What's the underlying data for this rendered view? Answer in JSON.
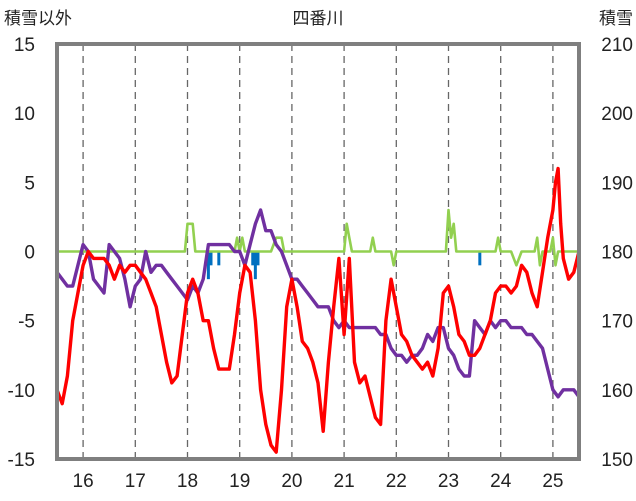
{
  "chart_data": {
    "type": "line",
    "title": "四番川",
    "ylabel_left": "積雪以外",
    "ylabel_right": "積雪",
    "ylim_left": [
      -15,
      15
    ],
    "ylim_right": [
      150,
      210
    ],
    "left_ticks": [
      15,
      10,
      5,
      0,
      -5,
      -10,
      -15
    ],
    "right_ticks": [
      210,
      200,
      190,
      180,
      170,
      160,
      150
    ],
    "xlim": [
      15.5,
      25.5
    ],
    "x_ticks": [
      16,
      17,
      18,
      19,
      20,
      21,
      22,
      23,
      24,
      25
    ],
    "grid": "dashed-vertical",
    "legend": "none",
    "series": [
      {
        "color": "#ff0000",
        "axis": "left",
        "points": [
          [
            15.5,
            -10
          ],
          [
            15.6,
            -11
          ],
          [
            15.7,
            -9
          ],
          [
            15.8,
            -5
          ],
          [
            15.9,
            -3
          ],
          [
            16.0,
            -1
          ],
          [
            16.1,
            0
          ],
          [
            16.2,
            -0.5
          ],
          [
            16.3,
            -0.5
          ],
          [
            16.4,
            -0.5
          ],
          [
            16.5,
            -1
          ],
          [
            16.6,
            -2
          ],
          [
            16.7,
            -1
          ],
          [
            16.8,
            -1.5
          ],
          [
            16.9,
            -1
          ],
          [
            17.0,
            -1
          ],
          [
            17.1,
            -1.5
          ],
          [
            17.2,
            -2
          ],
          [
            17.3,
            -3
          ],
          [
            17.4,
            -4
          ],
          [
            17.5,
            -6
          ],
          [
            17.6,
            -8
          ],
          [
            17.7,
            -9.5
          ],
          [
            17.8,
            -9
          ],
          [
            17.9,
            -6
          ],
          [
            18.0,
            -3
          ],
          [
            18.1,
            -2
          ],
          [
            18.2,
            -3
          ],
          [
            18.3,
            -5
          ],
          [
            18.4,
            -5
          ],
          [
            18.5,
            -7
          ],
          [
            18.6,
            -8.5
          ],
          [
            18.7,
            -8.5
          ],
          [
            18.8,
            -8.5
          ],
          [
            18.9,
            -6
          ],
          [
            19.0,
            -3
          ],
          [
            19.1,
            -1
          ],
          [
            19.2,
            -1.5
          ],
          [
            19.3,
            -5
          ],
          [
            19.4,
            -10
          ],
          [
            19.5,
            -12.5
          ],
          [
            19.6,
            -14
          ],
          [
            19.7,
            -14.5
          ],
          [
            19.8,
            -10
          ],
          [
            19.9,
            -4
          ],
          [
            20.0,
            -2
          ],
          [
            20.1,
            -4
          ],
          [
            20.2,
            -6.5
          ],
          [
            20.3,
            -7
          ],
          [
            20.4,
            -8
          ],
          [
            20.5,
            -9.5
          ],
          [
            20.6,
            -13
          ],
          [
            20.7,
            -8
          ],
          [
            20.8,
            -4
          ],
          [
            20.9,
            -0.5
          ],
          [
            21.0,
            -6
          ],
          [
            21.1,
            -0.5
          ],
          [
            21.2,
            -8
          ],
          [
            21.3,
            -9.5
          ],
          [
            21.4,
            -9
          ],
          [
            21.5,
            -10.5
          ],
          [
            21.6,
            -12
          ],
          [
            21.7,
            -12.5
          ],
          [
            21.8,
            -5
          ],
          [
            21.9,
            -2
          ],
          [
            22.0,
            -4
          ],
          [
            22.1,
            -6
          ],
          [
            22.2,
            -6.5
          ],
          [
            22.3,
            -7.5
          ],
          [
            22.4,
            -8
          ],
          [
            22.5,
            -8.5
          ],
          [
            22.6,
            -8
          ],
          [
            22.7,
            -9
          ],
          [
            22.8,
            -7
          ],
          [
            22.9,
            -3
          ],
          [
            23.0,
            -2.5
          ],
          [
            23.1,
            -4
          ],
          [
            23.2,
            -6
          ],
          [
            23.3,
            -6.5
          ],
          [
            23.4,
            -7.5
          ],
          [
            23.5,
            -7.5
          ],
          [
            23.6,
            -7
          ],
          [
            23.7,
            -6
          ],
          [
            23.8,
            -5
          ],
          [
            23.9,
            -3
          ],
          [
            24.0,
            -2.5
          ],
          [
            24.1,
            -2.5
          ],
          [
            24.2,
            -3
          ],
          [
            24.3,
            -2.5
          ],
          [
            24.4,
            -1
          ],
          [
            24.5,
            -1.5
          ],
          [
            24.6,
            -3
          ],
          [
            24.7,
            -4
          ],
          [
            24.8,
            -1.5
          ],
          [
            24.9,
            1
          ],
          [
            25.0,
            3
          ],
          [
            25.05,
            5
          ],
          [
            25.1,
            6
          ],
          [
            25.15,
            2
          ],
          [
            25.2,
            -0.5
          ],
          [
            25.3,
            -2
          ],
          [
            25.4,
            -1.5
          ],
          [
            25.5,
            0
          ]
        ]
      },
      {
        "color": "#7030a0",
        "axis": "left",
        "points": [
          [
            15.5,
            -1.5
          ],
          [
            15.6,
            -2
          ],
          [
            15.7,
            -2.5
          ],
          [
            15.8,
            -2.5
          ],
          [
            15.9,
            -1
          ],
          [
            16.0,
            0.5
          ],
          [
            16.1,
            0
          ],
          [
            16.2,
            -2
          ],
          [
            16.3,
            -2.5
          ],
          [
            16.4,
            -3
          ],
          [
            16.5,
            0.5
          ],
          [
            16.6,
            0
          ],
          [
            16.7,
            -0.5
          ],
          [
            16.8,
            -2
          ],
          [
            16.9,
            -4
          ],
          [
            17.0,
            -2.5
          ],
          [
            17.1,
            -2
          ],
          [
            17.2,
            0
          ],
          [
            17.3,
            -1.5
          ],
          [
            17.4,
            -1
          ],
          [
            17.5,
            -1
          ],
          [
            17.6,
            -1.5
          ],
          [
            17.7,
            -2
          ],
          [
            17.8,
            -2.5
          ],
          [
            17.9,
            -3
          ],
          [
            18.0,
            -3.5
          ],
          [
            18.1,
            -2.5
          ],
          [
            18.2,
            -3
          ],
          [
            18.3,
            -2
          ],
          [
            18.4,
            0.5
          ],
          [
            18.5,
            0.5
          ],
          [
            18.6,
            0.5
          ],
          [
            18.7,
            0.5
          ],
          [
            18.8,
            0.5
          ],
          [
            18.9,
            0
          ],
          [
            19.0,
            0
          ],
          [
            19.1,
            -1
          ],
          [
            19.2,
            0.5
          ],
          [
            19.3,
            2
          ],
          [
            19.4,
            3
          ],
          [
            19.5,
            1.5
          ],
          [
            19.6,
            1.5
          ],
          [
            19.7,
            0.5
          ],
          [
            19.8,
            0
          ],
          [
            19.9,
            -1
          ],
          [
            20.0,
            -2
          ],
          [
            20.1,
            -2
          ],
          [
            20.2,
            -2.5
          ],
          [
            20.3,
            -3
          ],
          [
            20.4,
            -3.5
          ],
          [
            20.5,
            -4
          ],
          [
            20.6,
            -4
          ],
          [
            20.7,
            -4
          ],
          [
            20.8,
            -5
          ],
          [
            20.9,
            -5.5
          ],
          [
            21.0,
            -5
          ],
          [
            21.1,
            -5.5
          ],
          [
            21.2,
            -5.5
          ],
          [
            21.3,
            -5.5
          ],
          [
            21.4,
            -5.5
          ],
          [
            21.5,
            -5.5
          ],
          [
            21.6,
            -5.5
          ],
          [
            21.7,
            -6
          ],
          [
            21.8,
            -6
          ],
          [
            21.9,
            -7
          ],
          [
            22.0,
            -7.5
          ],
          [
            22.1,
            -7.5
          ],
          [
            22.2,
            -8
          ],
          [
            22.3,
            -7.5
          ],
          [
            22.4,
            -7.5
          ],
          [
            22.5,
            -7
          ],
          [
            22.6,
            -6
          ],
          [
            22.7,
            -6.5
          ],
          [
            22.8,
            -5.5
          ],
          [
            22.9,
            -5.5
          ],
          [
            23.0,
            -7
          ],
          [
            23.1,
            -7.5
          ],
          [
            23.2,
            -8.5
          ],
          [
            23.3,
            -9
          ],
          [
            23.4,
            -9
          ],
          [
            23.5,
            -5
          ],
          [
            23.6,
            -5.5
          ],
          [
            23.7,
            -6
          ],
          [
            23.8,
            -5
          ],
          [
            23.9,
            -5.5
          ],
          [
            24.0,
            -5
          ],
          [
            24.1,
            -5
          ],
          [
            24.2,
            -5.5
          ],
          [
            24.3,
            -5.5
          ],
          [
            24.4,
            -5.5
          ],
          [
            24.5,
            -6
          ],
          [
            24.6,
            -6
          ],
          [
            24.7,
            -6.5
          ],
          [
            24.8,
            -7
          ],
          [
            24.9,
            -8.5
          ],
          [
            25.0,
            -10
          ],
          [
            25.1,
            -10.5
          ],
          [
            25.2,
            -10
          ],
          [
            25.3,
            -10
          ],
          [
            25.4,
            -10
          ],
          [
            25.5,
            -10.5
          ]
        ]
      },
      {
        "color": "#92d050",
        "axis": "left",
        "points": [
          [
            15.5,
            0
          ],
          [
            17.95,
            0
          ],
          [
            18.0,
            2
          ],
          [
            18.1,
            2
          ],
          [
            18.15,
            0
          ],
          [
            18.9,
            0
          ],
          [
            18.95,
            1
          ],
          [
            19.0,
            0
          ],
          [
            19.05,
            1
          ],
          [
            19.1,
            0
          ],
          [
            19.6,
            0
          ],
          [
            19.7,
            1
          ],
          [
            19.8,
            1
          ],
          [
            19.85,
            0
          ],
          [
            21.0,
            0
          ],
          [
            21.05,
            2
          ],
          [
            21.1,
            1
          ],
          [
            21.15,
            0
          ],
          [
            21.5,
            0
          ],
          [
            21.55,
            1
          ],
          [
            21.6,
            0
          ],
          [
            21.9,
            0
          ],
          [
            21.95,
            -1
          ],
          [
            22.0,
            0
          ],
          [
            22.95,
            0
          ],
          [
            23.0,
            3
          ],
          [
            23.05,
            1
          ],
          [
            23.1,
            2
          ],
          [
            23.15,
            0
          ],
          [
            23.9,
            0
          ],
          [
            23.95,
            1
          ],
          [
            24.0,
            0
          ],
          [
            24.2,
            0
          ],
          [
            24.3,
            -1
          ],
          [
            24.4,
            0
          ],
          [
            24.65,
            0
          ],
          [
            24.7,
            1
          ],
          [
            24.75,
            -1
          ],
          [
            24.8,
            0
          ],
          [
            24.95,
            0
          ],
          [
            25.0,
            1
          ],
          [
            25.05,
            -1
          ],
          [
            25.1,
            0
          ],
          [
            25.5,
            0
          ]
        ]
      },
      {
        "color": "#0070c0",
        "axis": "left",
        "kind": "bars",
        "points": [
          [
            18.4,
            -2
          ],
          [
            18.45,
            -1
          ],
          [
            18.6,
            -1
          ],
          [
            19.25,
            -1
          ],
          [
            19.3,
            -2
          ],
          [
            19.35,
            -1
          ],
          [
            23.6,
            -1
          ]
        ]
      }
    ]
  }
}
